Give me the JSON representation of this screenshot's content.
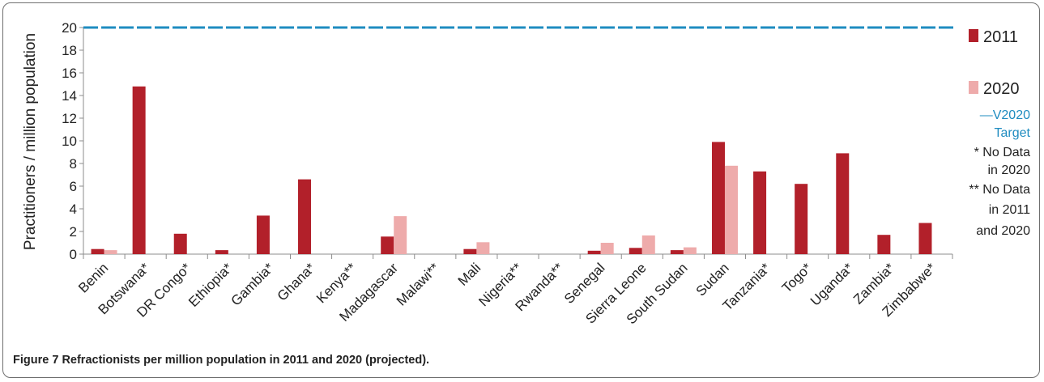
{
  "chart_data": {
    "type": "bar",
    "ylabel": "Practitioners / million population",
    "ylim": [
      0,
      20
    ],
    "yticks": [
      0,
      2,
      4,
      6,
      8,
      10,
      12,
      14,
      16,
      18,
      20
    ],
    "categories": [
      "Benin",
      "Botswana*",
      "DR Congo*",
      "Ethiopia*",
      "Gambia*",
      "Ghana*",
      "Kenya**",
      "Madagascar",
      "Malawi**",
      "Mali",
      "Nigeria**",
      "Rwanda**",
      "Senegal",
      "Sierra Leone",
      "South Sudan",
      "Sudan",
      "Tanzania*",
      "Togo*",
      "Uganda*",
      "Zambia*",
      "Zimbabwe*"
    ],
    "series": [
      {
        "name": "2011",
        "color": "#b2202a",
        "values": [
          0.45,
          14.8,
          1.8,
          0.35,
          3.4,
          6.6,
          0,
          1.55,
          0,
          0.45,
          0,
          0,
          0.3,
          0.55,
          0.35,
          9.9,
          7.3,
          6.2,
          8.9,
          1.7,
          2.75
        ]
      },
      {
        "name": "2020",
        "color": "#eeabab",
        "values": [
          0.35,
          null,
          null,
          null,
          null,
          null,
          null,
          3.35,
          null,
          1.05,
          null,
          null,
          1.0,
          1.65,
          0.6,
          7.8,
          null,
          null,
          null,
          null,
          null
        ]
      }
    ],
    "target_line": {
      "name": "V2020 Target",
      "value": 20,
      "color": "#1f8cc0"
    },
    "legend_position": "right",
    "legend_items": [
      {
        "label": "2011"
      },
      {
        "label": "2020"
      },
      {
        "label": "—V2020",
        "label2": "Target"
      }
    ],
    "notes": [
      {
        "line1": "* No Data",
        "line2": "in 2020"
      },
      {
        "line1": "** No Data",
        "line2": "in 2011",
        "line3": "and 2020"
      }
    ]
  },
  "caption": {
    "label": "Figure 7",
    "text": "Refractionists per million population in 2011 and 2020 (projected)."
  }
}
